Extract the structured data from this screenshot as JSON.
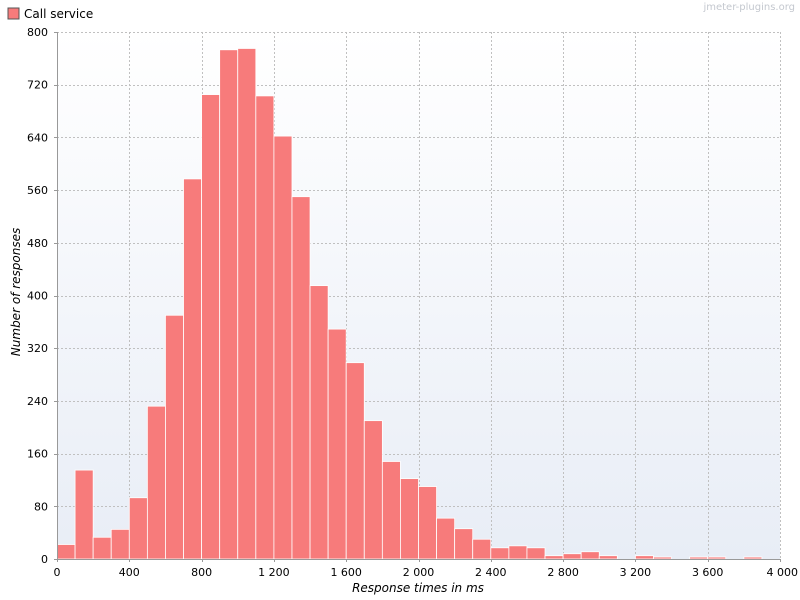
{
  "watermark": "jmeter-plugins.org",
  "legend": {
    "label": "Call service"
  },
  "chart_data": {
    "type": "bar",
    "title": "",
    "xlabel": "Response times in ms",
    "ylabel": "Number of responses",
    "xlim": [
      0,
      4000
    ],
    "ylim": [
      0,
      800
    ],
    "bin_width": 100,
    "x_ticks": [
      0,
      400,
      800,
      1200,
      1600,
      2000,
      2400,
      2800,
      3200,
      3600,
      4000
    ],
    "x_tick_labels": [
      "0",
      "400",
      "800",
      "1 200",
      "1 600",
      "2 000",
      "2 400",
      "2 800",
      "3 200",
      "3 600",
      "4 000"
    ],
    "y_ticks": [
      0,
      80,
      160,
      240,
      320,
      400,
      480,
      560,
      640,
      720,
      800
    ],
    "y_tick_labels": [
      "0",
      "80",
      "160",
      "240",
      "320",
      "400",
      "480",
      "560",
      "640",
      "720",
      "800"
    ],
    "grid": true,
    "legend_position": "top-left",
    "series": [
      {
        "name": "Call service",
        "color": "#f77b7b",
        "bins": [
          {
            "x": 0,
            "value": 22
          },
          {
            "x": 100,
            "value": 135
          },
          {
            "x": 200,
            "value": 33
          },
          {
            "x": 300,
            "value": 45
          },
          {
            "x": 400,
            "value": 93
          },
          {
            "x": 500,
            "value": 232
          },
          {
            "x": 600,
            "value": 370
          },
          {
            "x": 700,
            "value": 577
          },
          {
            "x": 800,
            "value": 705
          },
          {
            "x": 900,
            "value": 773
          },
          {
            "x": 1000,
            "value": 775
          },
          {
            "x": 1100,
            "value": 703
          },
          {
            "x": 1200,
            "value": 642
          },
          {
            "x": 1300,
            "value": 550
          },
          {
            "x": 1400,
            "value": 415
          },
          {
            "x": 1500,
            "value": 349
          },
          {
            "x": 1600,
            "value": 298
          },
          {
            "x": 1700,
            "value": 210
          },
          {
            "x": 1800,
            "value": 148
          },
          {
            "x": 1900,
            "value": 122
          },
          {
            "x": 2000,
            "value": 110
          },
          {
            "x": 2100,
            "value": 62
          },
          {
            "x": 2200,
            "value": 46
          },
          {
            "x": 2300,
            "value": 30
          },
          {
            "x": 2400,
            "value": 17
          },
          {
            "x": 2500,
            "value": 20
          },
          {
            "x": 2600,
            "value": 17
          },
          {
            "x": 2700,
            "value": 5
          },
          {
            "x": 2800,
            "value": 8
          },
          {
            "x": 2900,
            "value": 11
          },
          {
            "x": 3000,
            "value": 5
          },
          {
            "x": 3200,
            "value": 5
          },
          {
            "x": 3300,
            "value": 3
          },
          {
            "x": 3500,
            "value": 3
          },
          {
            "x": 3600,
            "value": 3
          },
          {
            "x": 3800,
            "value": 3
          }
        ]
      }
    ]
  }
}
